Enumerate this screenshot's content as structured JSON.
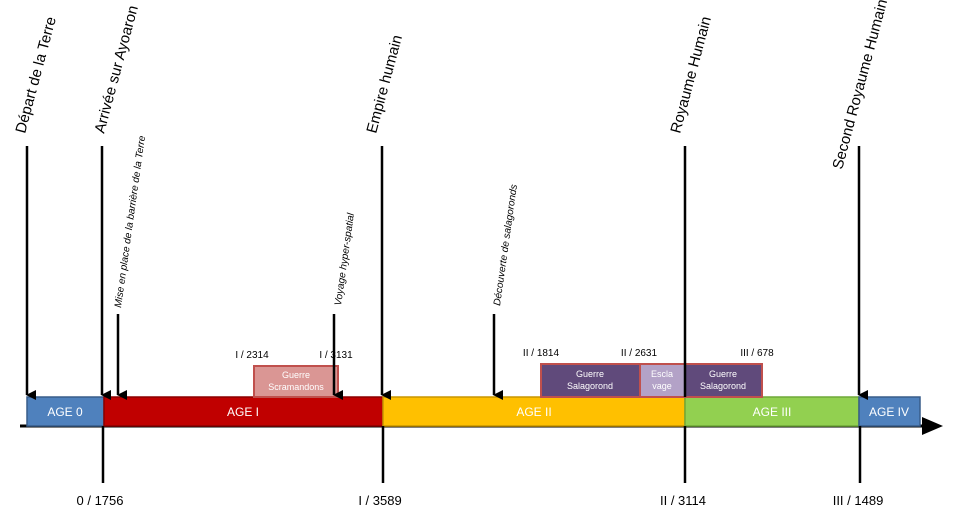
{
  "ages": [
    {
      "label": "AGE 0",
      "color": "#4f81bd"
    },
    {
      "label": "AGE I",
      "color": "#c00000"
    },
    {
      "label": "AGE II",
      "color": "#ffc000"
    },
    {
      "label": "AGE III",
      "color": "#92d050"
    },
    {
      "label": "AGE IV",
      "color": "#4f81bd"
    }
  ],
  "major_events": [
    {
      "label": "Départ de la Terre"
    },
    {
      "label": "Arrivée sur Ayoaron"
    },
    {
      "label": "Empire humain"
    },
    {
      "label": "Royaume Humain"
    },
    {
      "label": "Second Royaume Humain"
    }
  ],
  "minor_events": [
    {
      "label": "Mise en place de la barrière de la Terre"
    },
    {
      "label": "Voyage hyper-spatial"
    },
    {
      "label": "Découverte de salagoronds"
    }
  ],
  "boundary_dates": [
    "0 / 1756",
    "I / 3589",
    "II / 3114",
    "III / 1489"
  ],
  "wars": [
    {
      "line1": "Guerre",
      "line2": "Scramandons",
      "start": "I / 2314",
      "end": "I / 3131",
      "color": "#da9694"
    },
    {
      "line1": "Guerre",
      "line2": "Salagorond",
      "start": "II / 1814",
      "end": "",
      "color": "#604a7b"
    },
    {
      "line1": "Escla",
      "line2": "vage",
      "start": "II / 2631",
      "end": "",
      "color": "#b3a2c7"
    },
    {
      "line1": "Guerre",
      "line2": "Salagorond",
      "start": "III / 678",
      "end": "",
      "color": "#604a7b"
    }
  ]
}
